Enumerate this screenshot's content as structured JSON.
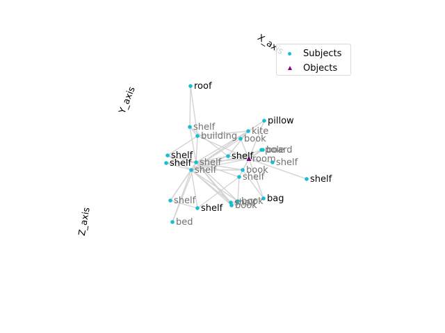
{
  "axes": {
    "x_label": "X_axis",
    "y_label": "Y_axis",
    "z_label": "Z_axis"
  },
  "legend": {
    "subjects_label": "Subjects",
    "objects_label": "Objects"
  },
  "colors": {
    "subject": "#17becf",
    "object": "#800080",
    "edge": "#d3d3d3",
    "label_front": "#000000",
    "label_back": "#707070"
  },
  "chart_data": {
    "type": "scatter",
    "projection": "3d",
    "series": [
      {
        "name": "Subjects",
        "marker": "circle",
        "color": "#17becf"
      },
      {
        "name": "Objects",
        "marker": "triangle",
        "color": "#800080"
      }
    ],
    "nodes": [
      {
        "label": "roof",
        "kind": "subject",
        "depth": "front"
      },
      {
        "label": "shelf",
        "kind": "subject",
        "depth": "back"
      },
      {
        "label": "building",
        "kind": "subject",
        "depth": "back"
      },
      {
        "label": "pillow",
        "kind": "subject",
        "depth": "front"
      },
      {
        "label": "kite",
        "kind": "subject",
        "depth": "back"
      },
      {
        "label": "book",
        "kind": "subject",
        "depth": "back"
      },
      {
        "label": "board",
        "kind": "subject",
        "depth": "back"
      },
      {
        "label": "pole",
        "kind": "subject",
        "depth": "back"
      },
      {
        "label": "shelf",
        "kind": "subject",
        "depth": "back"
      },
      {
        "label": "shelf",
        "kind": "subject",
        "depth": "front"
      },
      {
        "label": "room",
        "kind": "object",
        "depth": "back"
      },
      {
        "label": "shelf",
        "kind": "subject",
        "depth": "front"
      },
      {
        "label": "shelf",
        "kind": "subject",
        "depth": "front"
      },
      {
        "label": "shelf",
        "kind": "subject",
        "depth": "back"
      },
      {
        "label": "book",
        "kind": "subject",
        "depth": "back"
      },
      {
        "label": "shelf",
        "kind": "subject",
        "depth": "back"
      },
      {
        "label": "shelf",
        "kind": "subject",
        "depth": "front"
      },
      {
        "label": "shelf",
        "kind": "subject",
        "depth": "back"
      },
      {
        "label": "book",
        "kind": "subject",
        "depth": "back"
      },
      {
        "label": "shelf",
        "kind": "subject",
        "depth": "back"
      },
      {
        "label": "shelf",
        "kind": "subject",
        "depth": "front"
      },
      {
        "label": "bag",
        "kind": "subject",
        "depth": "front"
      },
      {
        "label": "book",
        "kind": "subject",
        "depth": "back"
      },
      {
        "label": "bed",
        "kind": "subject",
        "depth": "back"
      },
      {
        "label": "shelf",
        "kind": "subject",
        "depth": "back"
      }
    ]
  }
}
